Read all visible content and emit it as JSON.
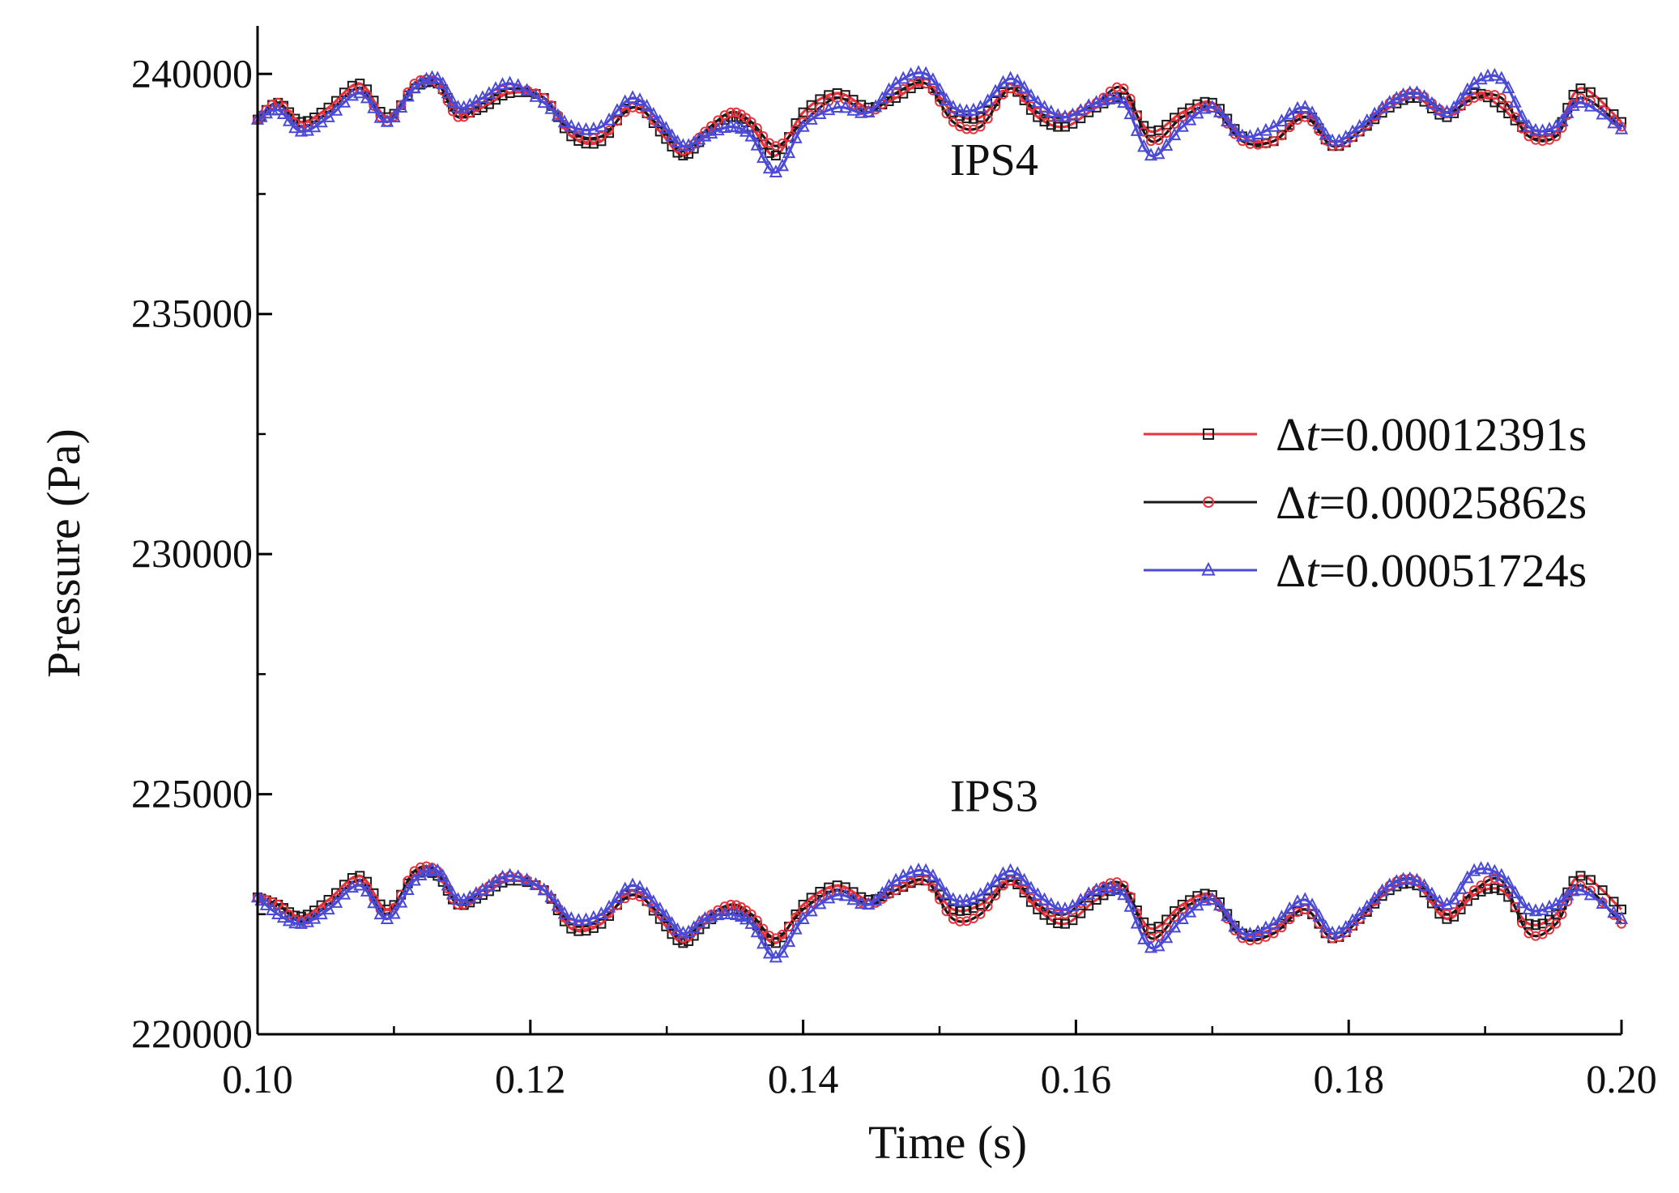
{
  "chart_data": {
    "type": "line",
    "title": "",
    "xlabel": "Time (s)",
    "ylabel": "Pressure (Pa)",
    "xlim": [
      0.1,
      0.2
    ],
    "ylim": [
      220000,
      241000
    ],
    "x_ticks": [
      0.1,
      0.12,
      0.14,
      0.16,
      0.18,
      0.2
    ],
    "x_tick_labels": [
      "0.10",
      "0.12",
      "0.14",
      "0.16",
      "0.18",
      "0.20"
    ],
    "y_ticks": [
      220000,
      225000,
      230000,
      235000,
      240000
    ],
    "y_tick_labels": [
      "220000",
      "225000",
      "230000",
      "235000",
      "240000"
    ],
    "grid": false,
    "legend_position": "right-middle",
    "annotations": [
      {
        "text": "IPS4",
        "x": 0.154,
        "y": 237900
      },
      {
        "text": "IPS3",
        "x": 0.154,
        "y": 224650
      }
    ],
    "legend": [
      {
        "label_prefix": "Δ",
        "label_var": "t",
        "label_suffix": "=0.00012391s",
        "line_color": "#e8323c",
        "marker": "square",
        "marker_color": "#1a1a1a"
      },
      {
        "label_prefix": "Δ",
        "label_var": "t",
        "label_suffix": "=0.00025862s",
        "line_color": "#1a1a1a",
        "marker": "circle",
        "marker_color": "#e8323c"
      },
      {
        "label_prefix": "Δ",
        "label_var": "t",
        "label_suffix": "=0.00051724s",
        "line_color": "#4a4ad6",
        "marker": "triangle",
        "marker_color": "#4a4ad6"
      }
    ],
    "series": [
      {
        "probe": "IPS4",
        "color": "#e8323c",
        "marker": "square",
        "x": [
          0.1,
          0.1015,
          0.1032,
          0.1052,
          0.1075,
          0.1095,
          0.1115,
          0.1132,
          0.1147,
          0.1165,
          0.1185,
          0.121,
          0.123,
          0.1252,
          0.1275,
          0.1295,
          0.1312,
          0.1328,
          0.1347,
          0.1362,
          0.138,
          0.14,
          0.1425,
          0.1448,
          0.1468,
          0.149,
          0.151,
          0.153,
          0.1552,
          0.1572,
          0.1592,
          0.1615,
          0.1635,
          0.1655,
          0.1678,
          0.17,
          0.1722,
          0.1745,
          0.1768,
          0.1788,
          0.1808,
          0.183,
          0.185,
          0.1872,
          0.1892,
          0.1912,
          0.1932,
          0.1952,
          0.197,
          0.2
        ],
        "y": [
          239050,
          239400,
          239000,
          239300,
          239800,
          239100,
          239700,
          239800,
          239200,
          239300,
          239600,
          239500,
          238700,
          238600,
          239400,
          238800,
          238300,
          238700,
          239100,
          238900,
          238300,
          239200,
          239600,
          239300,
          239500,
          239800,
          239200,
          239100,
          239700,
          239100,
          238900,
          239300,
          239500,
          238800,
          239200,
          239400,
          238700,
          238600,
          239200,
          238500,
          238800,
          239300,
          239500,
          239100,
          239600,
          239300,
          238800,
          238800,
          239700,
          239000
        ]
      },
      {
        "probe": "IPS4",
        "color": "#1a1a1a",
        "marker": "circle",
        "x": [
          0.1,
          0.1015,
          0.1032,
          0.1052,
          0.1075,
          0.1095,
          0.1115,
          0.1132,
          0.1147,
          0.1165,
          0.1185,
          0.121,
          0.123,
          0.1252,
          0.1275,
          0.1295,
          0.1312,
          0.1328,
          0.1347,
          0.1362,
          0.138,
          0.14,
          0.1425,
          0.1448,
          0.1468,
          0.149,
          0.151,
          0.153,
          0.1552,
          0.1572,
          0.1592,
          0.1615,
          0.1635,
          0.1655,
          0.1678,
          0.17,
          0.1722,
          0.1745,
          0.1768,
          0.1788,
          0.1808,
          0.183,
          0.185,
          0.1872,
          0.1892,
          0.1912,
          0.1932,
          0.1952,
          0.197,
          0.2
        ],
        "y": [
          239050,
          239400,
          238900,
          239200,
          239700,
          239000,
          239800,
          239800,
          239100,
          239400,
          239700,
          239500,
          238800,
          238700,
          239300,
          238900,
          238400,
          238800,
          239200,
          239000,
          238500,
          239000,
          239500,
          239200,
          239600,
          239800,
          239000,
          238900,
          239700,
          239200,
          239100,
          239400,
          239700,
          238600,
          239100,
          239300,
          238600,
          238600,
          239100,
          238500,
          238800,
          239400,
          239600,
          239200,
          239500,
          239500,
          238700,
          238700,
          239500,
          238900
        ]
      },
      {
        "probe": "IPS4",
        "color": "#4a4ad6",
        "marker": "triangle",
        "x": [
          0.1,
          0.1015,
          0.1032,
          0.1052,
          0.1075,
          0.1095,
          0.1115,
          0.1132,
          0.1147,
          0.1165,
          0.1185,
          0.121,
          0.123,
          0.1252,
          0.1275,
          0.1295,
          0.1312,
          0.1328,
          0.1347,
          0.1362,
          0.138,
          0.14,
          0.1425,
          0.1448,
          0.1468,
          0.149,
          0.151,
          0.153,
          0.1552,
          0.1572,
          0.1592,
          0.1615,
          0.1635,
          0.1655,
          0.1678,
          0.17,
          0.1722,
          0.1745,
          0.1768,
          0.1788,
          0.1808,
          0.183,
          0.185,
          0.1872,
          0.1892,
          0.1912,
          0.1932,
          0.1952,
          0.197,
          0.2
        ],
        "y": [
          239050,
          239250,
          238800,
          239100,
          239600,
          239000,
          239700,
          239900,
          239300,
          239500,
          239800,
          239400,
          238900,
          238900,
          239500,
          239000,
          238500,
          238700,
          238900,
          238700,
          237950,
          238900,
          239300,
          239200,
          239800,
          240000,
          239300,
          239300,
          239900,
          239400,
          239100,
          239400,
          239400,
          238300,
          238900,
          239300,
          238700,
          238900,
          239300,
          238600,
          238900,
          239400,
          239600,
          239200,
          239800,
          239900,
          238900,
          238900,
          239400,
          238850
        ]
      },
      {
        "probe": "IPS3",
        "color": "#e8323c",
        "marker": "square",
        "x": [
          0.1,
          0.1015,
          0.1032,
          0.1052,
          0.1075,
          0.1095,
          0.1115,
          0.1132,
          0.1147,
          0.1165,
          0.1185,
          0.121,
          0.123,
          0.1252,
          0.1275,
          0.1295,
          0.1312,
          0.1328,
          0.1347,
          0.1362,
          0.138,
          0.14,
          0.1425,
          0.1448,
          0.1468,
          0.149,
          0.151,
          0.153,
          0.1552,
          0.1572,
          0.1592,
          0.1615,
          0.1635,
          0.1655,
          0.1678,
          0.17,
          0.1722,
          0.1745,
          0.1768,
          0.1788,
          0.1808,
          0.183,
          0.185,
          0.1872,
          0.1892,
          0.1912,
          0.1932,
          0.1952,
          0.197,
          0.2
        ],
        "y": [
          222850,
          222700,
          222450,
          222800,
          223300,
          222600,
          223300,
          223300,
          222700,
          222900,
          223200,
          223000,
          222200,
          222300,
          223000,
          222400,
          221900,
          222300,
          222600,
          222400,
          221900,
          222700,
          223100,
          222800,
          223000,
          223200,
          222600,
          222700,
          223200,
          222600,
          222300,
          222800,
          223000,
          222200,
          222700,
          222900,
          222100,
          222200,
          222600,
          222000,
          222400,
          223000,
          223100,
          222400,
          222900,
          223000,
          222300,
          222500,
          223300,
          222600
        ]
      },
      {
        "probe": "IPS3",
        "color": "#1a1a1a",
        "marker": "circle",
        "x": [
          0.1,
          0.1015,
          0.1032,
          0.1052,
          0.1075,
          0.1095,
          0.1115,
          0.1132,
          0.1147,
          0.1165,
          0.1185,
          0.121,
          0.123,
          0.1252,
          0.1275,
          0.1295,
          0.1312,
          0.1328,
          0.1347,
          0.1362,
          0.138,
          0.14,
          0.1425,
          0.1448,
          0.1468,
          0.149,
          0.151,
          0.153,
          0.1552,
          0.1572,
          0.1592,
          0.1615,
          0.1635,
          0.1655,
          0.1678,
          0.17,
          0.1722,
          0.1745,
          0.1768,
          0.1788,
          0.1808,
          0.183,
          0.185,
          0.1872,
          0.1892,
          0.1912,
          0.1932,
          0.1952,
          0.197,
          0.2
        ],
        "y": [
          222850,
          222700,
          222350,
          222700,
          223200,
          222500,
          223400,
          223400,
          222700,
          223000,
          223300,
          223000,
          222300,
          222400,
          222900,
          222500,
          222000,
          222400,
          222700,
          222500,
          222000,
          222600,
          223000,
          222700,
          223000,
          223200,
          222400,
          222500,
          223200,
          222700,
          222500,
          223000,
          223100,
          222000,
          222600,
          222800,
          222000,
          222100,
          222600,
          222000,
          222400,
          223100,
          223200,
          222500,
          223000,
          223200,
          222100,
          222300,
          223100,
          222300
        ]
      },
      {
        "probe": "IPS3",
        "color": "#4a4ad6",
        "marker": "triangle",
        "x": [
          0.1,
          0.1015,
          0.1032,
          0.1052,
          0.1075,
          0.1095,
          0.1115,
          0.1132,
          0.1147,
          0.1165,
          0.1185,
          0.121,
          0.123,
          0.1252,
          0.1275,
          0.1295,
          0.1312,
          0.1328,
          0.1347,
          0.1362,
          0.138,
          0.14,
          0.1425,
          0.1448,
          0.1468,
          0.149,
          0.151,
          0.153,
          0.1552,
          0.1572,
          0.1592,
          0.1615,
          0.1635,
          0.1655,
          0.1678,
          0.17,
          0.1722,
          0.1745,
          0.1768,
          0.1788,
          0.1808,
          0.183,
          0.185,
          0.1872,
          0.1892,
          0.1912,
          0.1932,
          0.1952,
          0.197,
          0.2
        ],
        "y": [
          222850,
          222500,
          222300,
          222600,
          223100,
          222400,
          223200,
          223400,
          222800,
          223000,
          223300,
          223000,
          222400,
          222500,
          223100,
          222600,
          222100,
          222400,
          222500,
          222300,
          221600,
          222400,
          222900,
          222700,
          223200,
          223400,
          222800,
          222900,
          223400,
          222900,
          222600,
          223000,
          222900,
          221800,
          222400,
          222800,
          222100,
          222300,
          222800,
          222100,
          222500,
          223100,
          223200,
          222700,
          223400,
          223300,
          222600,
          222700,
          223000,
          222400
        ]
      }
    ]
  }
}
